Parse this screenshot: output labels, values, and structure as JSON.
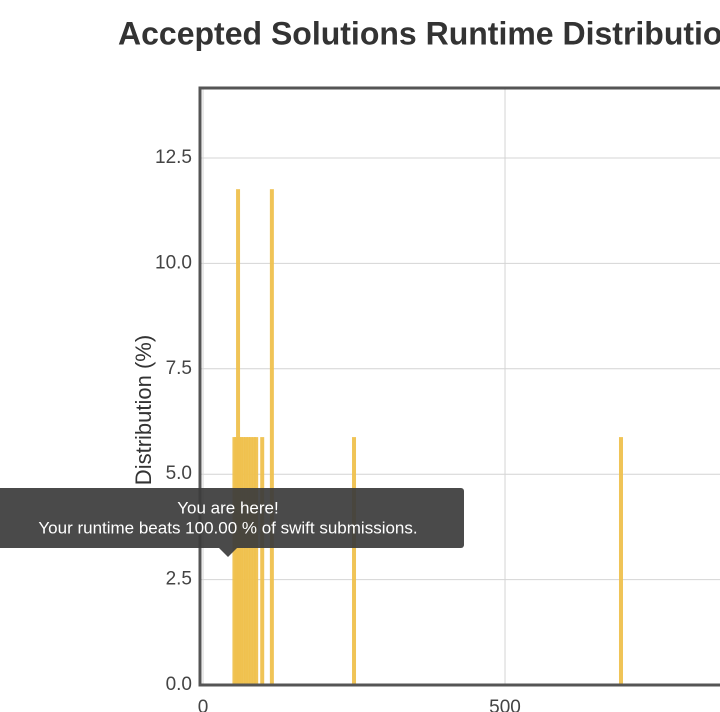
{
  "chart_data": {
    "type": "bar",
    "title": "Accepted Solutions Runtime Distribution",
    "y_label": "Distribution (%)",
    "x": [
      52,
      55,
      58,
      60,
      63,
      67,
      71,
      75,
      79,
      84,
      88,
      98,
      114,
      250,
      692
    ],
    "values": [
      5.88,
      5.88,
      11.76,
      5.88,
      5.88,
      5.88,
      5.88,
      5.88,
      5.88,
      5.88,
      5.88,
      5.88,
      11.76,
      5.88,
      5.88
    ],
    "color": "#efc14e",
    "xlim": [
      -5,
      1000
    ],
    "xticks": [
      0,
      500
    ],
    "ylim": [
      0,
      14.16
    ],
    "yticks": [
      {
        "value": 0,
        "label": "0.0"
      },
      2.5,
      {
        "value": 5,
        "label": "5.0"
      },
      7.5,
      {
        "value": 10,
        "label": "10.0"
      },
      12.5
    ],
    "grid": true,
    "tooltip": {
      "title": "You are here!",
      "text": "Your runtime beats 100.00 % of swift submissions."
    }
  }
}
